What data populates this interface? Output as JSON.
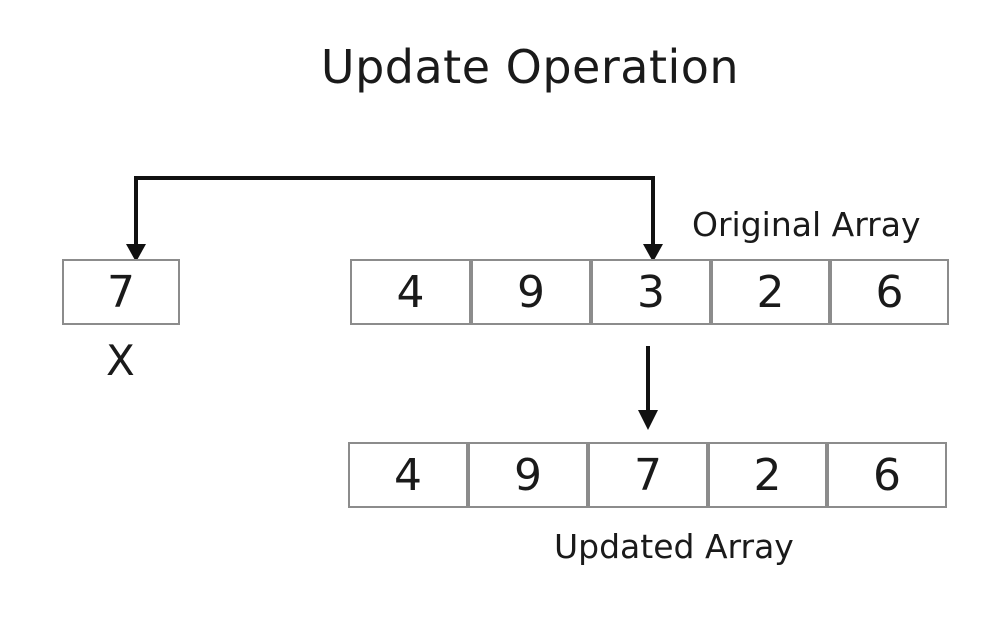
{
  "title": "Update Operation",
  "variable": {
    "value": "7",
    "name": "X"
  },
  "original_array": {
    "label": "Original Array",
    "values": [
      "4",
      "9",
      "3",
      "2",
      "6"
    ]
  },
  "updated_array": {
    "label": "Updated Array",
    "values": [
      "4",
      "9",
      "7",
      "2",
      "6"
    ]
  },
  "updated_index": 2,
  "colors": {
    "cell_border": "#8c8c8c",
    "arrow": "#111111",
    "text": "#1a1a1a"
  }
}
